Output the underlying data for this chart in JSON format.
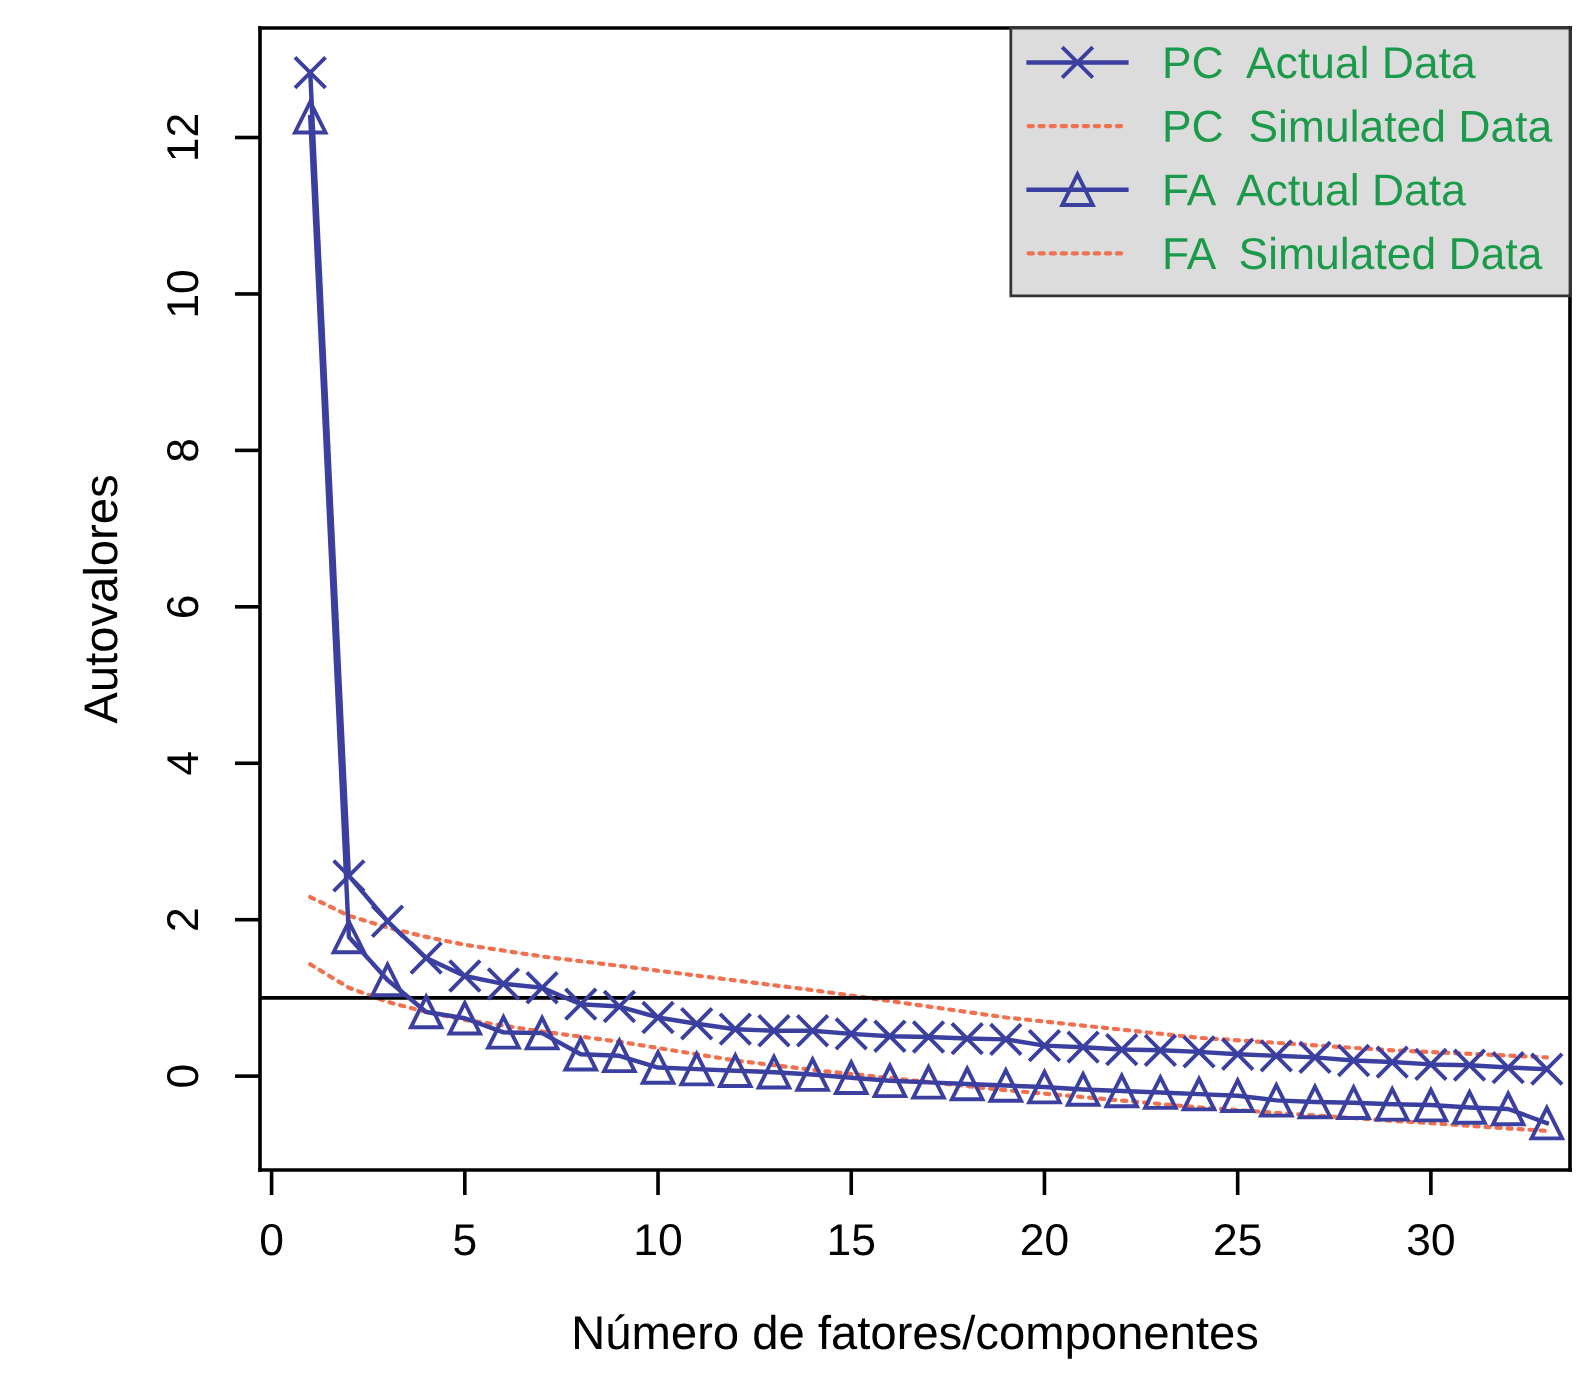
{
  "chart_data": {
    "type": "line",
    "xlabel": "Número de fatores/componentes",
    "ylabel": "Autovalores",
    "x": [
      1,
      2,
      3,
      4,
      5,
      6,
      7,
      8,
      9,
      10,
      11,
      12,
      13,
      14,
      15,
      16,
      17,
      18,
      19,
      20,
      21,
      22,
      23,
      24,
      25,
      26,
      27,
      28,
      29,
      30,
      31,
      32,
      33
    ],
    "series": [
      {
        "name": "PC  Actual Data",
        "marker": "cross",
        "color": "#3b3fa0",
        "values": [
          12.83,
          2.56,
          1.98,
          1.51,
          1.28,
          1.18,
          1.13,
          0.92,
          0.89,
          0.75,
          0.67,
          0.6,
          0.58,
          0.58,
          0.54,
          0.51,
          0.5,
          0.48,
          0.47,
          0.39,
          0.37,
          0.34,
          0.33,
          0.31,
          0.28,
          0.26,
          0.24,
          0.2,
          0.18,
          0.15,
          0.14,
          0.11,
          0.09
        ]
      },
      {
        "name": "PC  Simulated Data",
        "marker": "none",
        "line_style": "dotted",
        "color": "#f07050",
        "x": [
          1,
          2,
          3,
          4,
          5,
          7,
          9,
          14,
          19,
          24,
          29,
          33
        ],
        "values": [
          2.29,
          2.05,
          1.9,
          1.78,
          1.68,
          1.53,
          1.41,
          1.1,
          0.75,
          0.49,
          0.33,
          0.24
        ]
      },
      {
        "name": "FA  Actual Data",
        "marker": "triangle",
        "color": "#3b3fa0",
        "values": [
          12.26,
          1.78,
          1.23,
          0.82,
          0.74,
          0.56,
          0.55,
          0.28,
          0.26,
          0.11,
          0.09,
          0.07,
          0.05,
          0.02,
          -0.02,
          -0.06,
          -0.08,
          -0.1,
          -0.12,
          -0.14,
          -0.17,
          -0.19,
          -0.21,
          -0.23,
          -0.25,
          -0.31,
          -0.33,
          -0.34,
          -0.36,
          -0.37,
          -0.4,
          -0.42,
          -0.6
        ]
      },
      {
        "name": "FA  Simulated Data",
        "marker": "none",
        "line_style": "dotted",
        "color": "#f07050",
        "x": [
          1,
          2,
          3,
          4,
          5,
          7,
          9,
          12,
          14,
          19,
          24,
          29,
          33
        ],
        "values": [
          1.43,
          1.13,
          0.95,
          0.82,
          0.72,
          0.57,
          0.44,
          0.2,
          0.08,
          -0.18,
          -0.4,
          -0.57,
          -0.7
        ]
      }
    ],
    "xlim": [
      -0.3,
      33.6
    ],
    "ylim": [
      -1.2,
      13.4
    ],
    "xticks": [
      0,
      5,
      10,
      15,
      20,
      25,
      30
    ],
    "yticks": [
      0,
      2,
      4,
      6,
      8,
      10,
      12
    ],
    "ref_lines": [
      {
        "axis": "y",
        "value": 1,
        "color": "#000000",
        "line_style": "solid"
      }
    ],
    "grid": false,
    "legend": "top right"
  }
}
